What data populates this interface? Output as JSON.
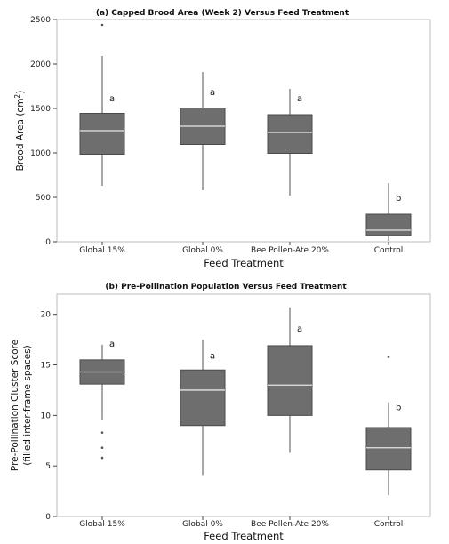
{
  "chart_data": [
    {
      "type": "box",
      "title": "(a) Capped Brood Area (Week 2) Versus Feed Treatment",
      "xlabel": "Feed Treatment",
      "ylabel": "Brood Area (cm",
      "ylabel_sup": "2",
      "ylabel_end": ")",
      "ylim": [
        0,
        2500
      ],
      "yticks": [
        0,
        500,
        1000,
        1500,
        2000,
        2500
      ],
      "yticklabels": [
        "0",
        "500",
        "1000",
        "1500",
        "2000",
        "2500"
      ],
      "categories": [
        "Global 15%",
        "Global 0%",
        "Bee Pollen-Ate 20%",
        "Control"
      ],
      "boxes": [
        {
          "whisker_low": 630,
          "q1": 985,
          "median": 1250,
          "q3": 1445,
          "whisker_high": 2090,
          "outliers": [
            2440
          ],
          "letter": "a"
        },
        {
          "whisker_low": 580,
          "q1": 1095,
          "median": 1300,
          "q3": 1505,
          "whisker_high": 1910,
          "outliers": [],
          "letter": "a"
        },
        {
          "whisker_low": 520,
          "q1": 995,
          "median": 1230,
          "q3": 1430,
          "whisker_high": 1720,
          "outliers": [],
          "letter": "a"
        },
        {
          "whisker_low": 10,
          "q1": 70,
          "median": 130,
          "q3": 310,
          "whisker_high": 660,
          "outliers": [],
          "letter": "b"
        }
      ],
      "letter_y": [
        1580,
        1650,
        1580,
        460
      ]
    },
    {
      "type": "box",
      "title": "(b) Pre-Pollination Population Versus Feed Treatment",
      "xlabel": "Feed Treatment",
      "ylabel": "Pre-Pollination Cluster Score",
      "ylabel2": "(filled inter-frame spaces)",
      "ylim": [
        0,
        22
      ],
      "yticks": [
        0,
        5,
        10,
        15,
        20
      ],
      "yticklabels": [
        "0",
        "5",
        "10",
        "15",
        "20"
      ],
      "categories": [
        "Global 15%",
        "Global 0%",
        "Bee Pollen-Ate 20%",
        "Control"
      ],
      "boxes": [
        {
          "whisker_low": 9.6,
          "q1": 13.1,
          "median": 14.3,
          "q3": 15.5,
          "whisker_high": 17.0,
          "outliers": [
            8.3,
            6.8,
            5.8
          ],
          "letter": "a"
        },
        {
          "whisker_low": 4.1,
          "q1": 9.0,
          "median": 12.5,
          "q3": 14.5,
          "whisker_high": 17.5,
          "outliers": [],
          "letter": "a"
        },
        {
          "whisker_low": 6.3,
          "q1": 10.0,
          "median": 13.0,
          "q3": 16.9,
          "whisker_high": 20.7,
          "outliers": [],
          "letter": "a"
        },
        {
          "whisker_low": 2.1,
          "q1": 4.6,
          "median": 6.8,
          "q3": 8.8,
          "whisker_high": 11.3,
          "outliers": [
            15.8
          ],
          "letter": "b"
        }
      ],
      "letter_y": [
        16.8,
        15.6,
        18.3,
        10.5
      ]
    }
  ]
}
